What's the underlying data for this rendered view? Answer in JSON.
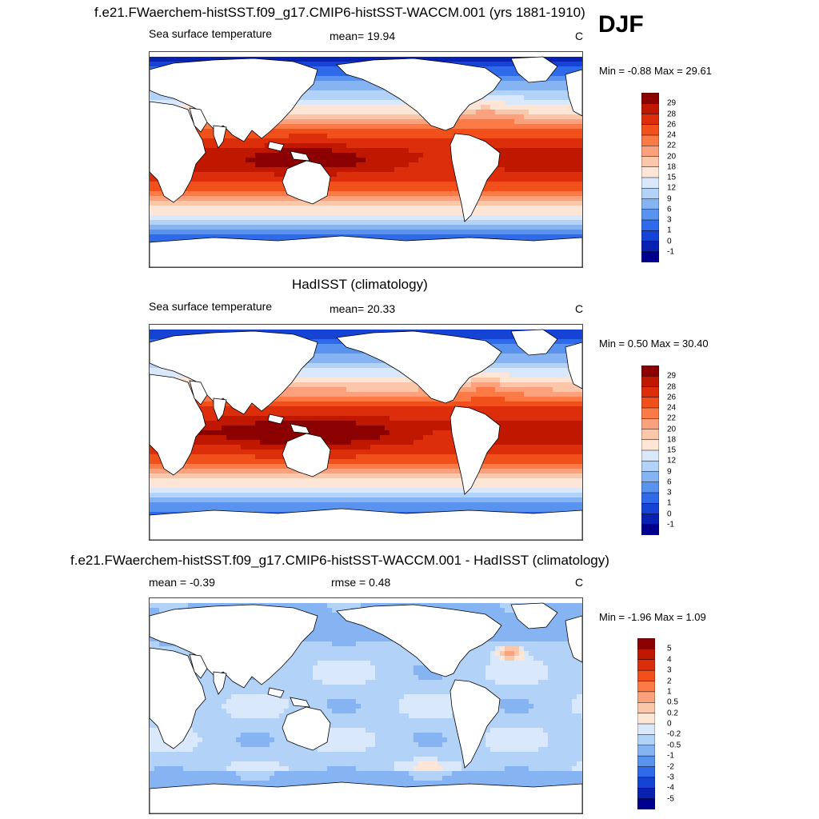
{
  "season": "DJF",
  "panels": [
    {
      "title": "f.e21.FWaerchem-histSST.f09_g17.CMIP6-histSST-WACCM.001 (yrs 1881-1910)",
      "left_label": "Sea surface temperature",
      "mid_label": "mean=  19.94",
      "unit": "C",
      "minmax": "Min =  -0.88 Max =  29.61"
    },
    {
      "title": "HadISST (climatology)",
      "left_label": "Sea surface temperature",
      "mid_label": "mean=  20.33",
      "unit": "C",
      "minmax": "Min =   0.50 Max =  30.40"
    },
    {
      "title": "f.e21.FWaerchem-histSST.f09_g17.CMIP6-histSST-WACCM.001 - HadISST (climatology)",
      "left_label": "mean =  -0.39",
      "mid_label": "rmse =   0.48",
      "unit": "C",
      "minmax": "Min =  -1.96 Max =   1.09"
    }
  ],
  "chart_data": [
    {
      "type": "heatmap",
      "title": "f.e21.FWaerchem-histSST.f09_g17.CMIP6-histSST-WACCM.001 (yrs 1881-1910)",
      "variable": "Sea surface temperature",
      "units": "C",
      "mean": 19.94,
      "min": -0.88,
      "max": 29.61,
      "colorbar_levels": [
        "29",
        "28",
        "26",
        "24",
        "22",
        "20",
        "18",
        "15",
        "12",
        "9",
        "6",
        "3",
        "1",
        "0",
        "-1"
      ],
      "colors": [
        "#8b0000",
        "#c01800",
        "#dc2e0b",
        "#f2501b",
        "#fb7a45",
        "#fca17d",
        "#fbc7aa",
        "#fde6d6",
        "#d9e9fb",
        "#b3d2f8",
        "#86b4f3",
        "#5a92ef",
        "#2f6aea",
        "#1443d6",
        "#0821b0",
        "#00008c"
      ]
    },
    {
      "type": "heatmap",
      "title": "HadISST (climatology)",
      "variable": "Sea surface temperature",
      "units": "C",
      "mean": 20.33,
      "min": 0.5,
      "max": 30.4,
      "colorbar_levels": [
        "29",
        "28",
        "26",
        "24",
        "22",
        "20",
        "18",
        "15",
        "12",
        "9",
        "6",
        "3",
        "1",
        "0",
        "-1"
      ],
      "colors": [
        "#8b0000",
        "#c01800",
        "#dc2e0b",
        "#f2501b",
        "#fb7a45",
        "#fca17d",
        "#fbc7aa",
        "#fde6d6",
        "#d9e9fb",
        "#b3d2f8",
        "#86b4f3",
        "#5a92ef",
        "#2f6aea",
        "#1443d6",
        "#0821b0",
        "#00008c"
      ]
    },
    {
      "type": "heatmap",
      "title": "f.e21.FWaerchem-histSST.f09_g17.CMIP6-histSST-WACCM.001 - HadISST (climatology)",
      "units": "C",
      "mean": -0.39,
      "rmse": 0.48,
      "min": -1.96,
      "max": 1.09,
      "colorbar_levels": [
        "5",
        "4",
        "3",
        "2",
        "1",
        "0.5",
        "0.2",
        "0",
        "-0.2",
        "-0.5",
        "-1",
        "-2",
        "-3",
        "-4",
        "-5"
      ],
      "colors": [
        "#8b0000",
        "#c01800",
        "#dc2e0b",
        "#f2501b",
        "#fb7a45",
        "#fca17d",
        "#fbc7aa",
        "#fde6d6",
        "#d9e9fb",
        "#b3d2f8",
        "#86b4f3",
        "#5a92ef",
        "#2f6aea",
        "#1443d6",
        "#0821b0",
        "#00008c"
      ]
    }
  ]
}
